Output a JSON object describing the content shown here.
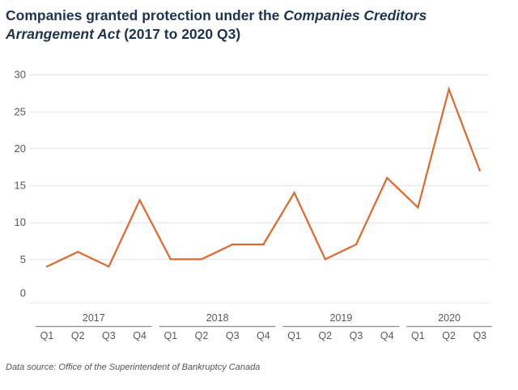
{
  "title": {
    "part1": "Companies granted protection under the ",
    "part2_italic": "Companies Creditors Arrangement Act",
    "part3": " (2017 to 2020 Q3)"
  },
  "source": "Data source: Office of the Superintendent of Bankruptcy Canada",
  "colors": {
    "line": "#e0682c",
    "title": "#1d3350",
    "grid": "#e6e6e6",
    "axis_text": "#595959",
    "group_line": "#8c8c8c"
  },
  "chart_data": {
    "type": "line",
    "title": "Companies granted protection under the Companies Creditors Arrangement Act (2017 to 2020 Q3)",
    "xlabel": "",
    "ylabel": "",
    "ylim": [
      0,
      30
    ],
    "yticks": [
      "0",
      "5",
      "10",
      "15",
      "20",
      "25",
      "30"
    ],
    "grid": true,
    "groups": [
      {
        "label": "2017",
        "quarters": [
          "Q1",
          "Q2",
          "Q3",
          "Q4"
        ]
      },
      {
        "label": "2018",
        "quarters": [
          "Q1",
          "Q2",
          "Q3",
          "Q4"
        ]
      },
      {
        "label": "2019",
        "quarters": [
          "Q1",
          "Q2",
          "Q3",
          "Q4"
        ]
      },
      {
        "label": "2020",
        "quarters": [
          "Q1",
          "Q2",
          "Q3"
        ]
      }
    ],
    "series": [
      {
        "name": "Companies granted protection",
        "values": [
          4,
          6,
          4,
          13,
          5,
          5,
          7,
          7,
          14,
          5,
          7,
          16,
          12,
          28,
          17
        ]
      }
    ]
  }
}
